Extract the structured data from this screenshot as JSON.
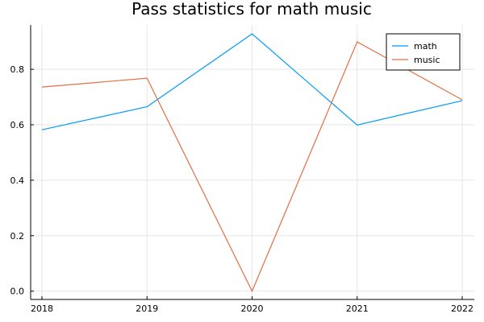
{
  "chart_data": {
    "type": "line",
    "title": "Pass statistics for math music",
    "xlabel": "",
    "ylabel": "",
    "x": [
      2018,
      2019,
      2020,
      2021,
      2022
    ],
    "x_tick_labels": [
      "2018",
      "2019",
      "2020",
      "2021",
      "2022"
    ],
    "y_ticks": [
      0.0,
      0.2,
      0.4,
      0.6,
      0.8
    ],
    "y_tick_labels": [
      "0.0",
      "0.2",
      "0.4",
      "0.6",
      "0.8"
    ],
    "xlim": [
      2018,
      2022
    ],
    "ylim": [
      -0.03,
      0.96
    ],
    "grid": true,
    "legend_position": "top-right",
    "series": [
      {
        "name": "math",
        "color": "#009AFA",
        "values": [
          0.582,
          0.665,
          0.928,
          0.599,
          0.687
        ]
      },
      {
        "name": "music",
        "color": "#E26F46",
        "values": [
          0.736,
          0.768,
          0.0,
          0.899,
          0.69
        ]
      }
    ]
  }
}
